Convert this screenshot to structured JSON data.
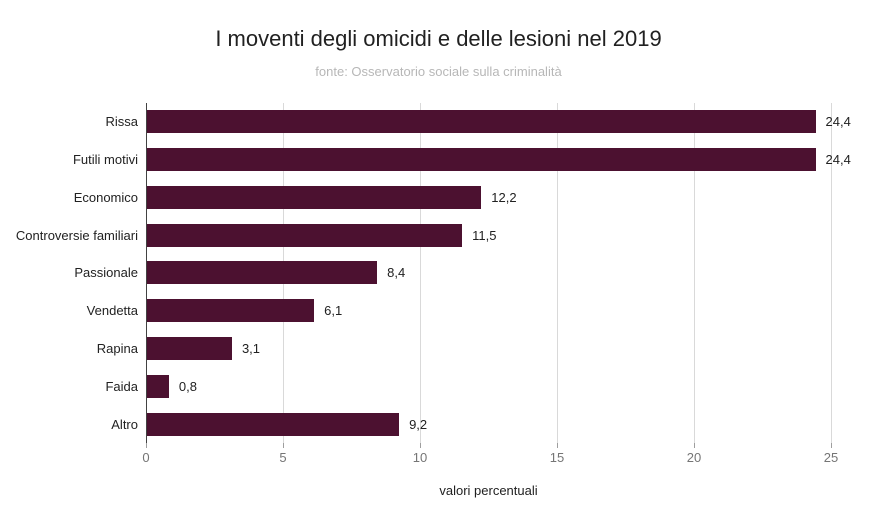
{
  "header": {
    "title": "I moventi degli omicidi e delle lesioni nel 2019",
    "subtitle": "fonte: Osservatorio sociale sulla criminalità"
  },
  "colors": {
    "bar": "#4c1130",
    "axis_line": "#424242",
    "gridline": "#d9d9d9",
    "title_text": "#212121",
    "subtitle_text": "#b7b7b7",
    "tick_label_text": "#757575",
    "category_label_text": "#222222",
    "value_label_text": "#212121"
  },
  "chart_data": {
    "type": "bar",
    "orientation": "horizontal",
    "title": "I moventi degli omicidi e delle lesioni nel 2019",
    "subtitle": "fonte: Osservatorio sociale sulla criminalità",
    "categories": [
      "Rissa",
      "Futili motivi",
      "Economico",
      "Controversie familiari",
      "Passionale",
      "Vendetta",
      "Rapina",
      "Faida",
      "Altro"
    ],
    "values": [
      24.4,
      24.4,
      12.2,
      11.5,
      8.4,
      6.1,
      3.1,
      0.8,
      9.2
    ],
    "value_labels": [
      "24,4",
      "24,4",
      "12,2",
      "11,5",
      "8,4",
      "6,1",
      "3,1",
      "0,8",
      "9,2"
    ],
    "xlabel": "valori percentuali",
    "ylabel": "",
    "xlim": [
      0,
      25
    ],
    "xticks": [
      0,
      5,
      10,
      15,
      20,
      25
    ],
    "xtick_labels": [
      "0",
      "5",
      "10",
      "15",
      "20",
      "25"
    ],
    "grid": true,
    "legend": false
  }
}
